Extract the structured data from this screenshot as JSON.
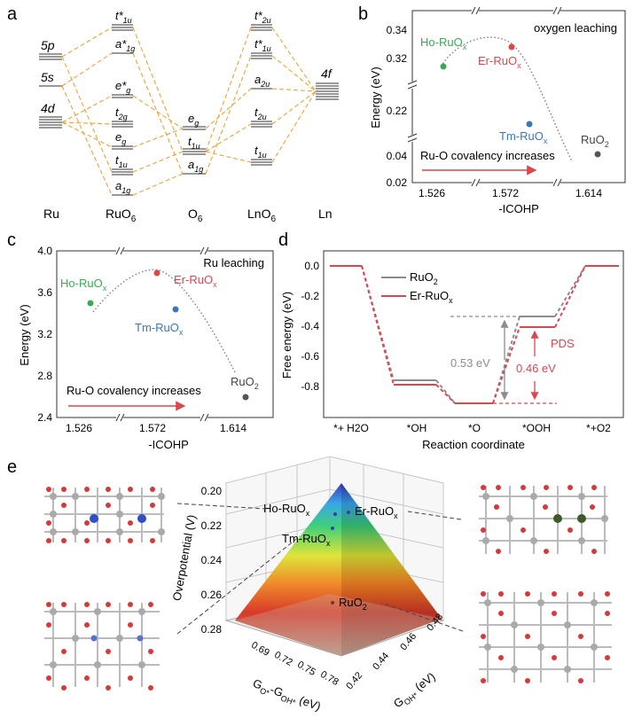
{
  "panel_letters": {
    "a": "a",
    "b": "b",
    "c": "c",
    "d": "d",
    "e": "e"
  },
  "colors": {
    "orange": "#e8a33a",
    "ho": "#3aa856",
    "er": "#d9474f",
    "tm": "#3a78b4",
    "ruo2": "#555555",
    "gray_line": "#8c8c8c",
    "red_line": "#d9474f"
  },
  "mo": {
    "ru_orbitals": {
      "p5": "5p",
      "s5": "5s",
      "d4": "4d"
    },
    "ru_label": "Ru",
    "ruo6_label": "RuO",
    "ruo6_sub": "6",
    "o6_label": "O",
    "o6_sub": "6",
    "lno6_label": "LnO",
    "lno6_sub": "6",
    "ln_label": "Ln",
    "ln_f": "4f",
    "ruo6_levels": [
      {
        "m": "t*",
        "s": "1u"
      },
      {
        "m": "a*",
        "s": "1g"
      },
      {
        "m": "e*",
        "s": "g"
      },
      {
        "m": "t",
        "s": "2g"
      },
      {
        "m": "e",
        "s": "g"
      },
      {
        "m": "t",
        "s": "1u"
      },
      {
        "m": "a",
        "s": "1g"
      }
    ],
    "o6_levels": [
      {
        "m": "e",
        "s": "g"
      },
      {
        "m": "t",
        "s": "1u"
      },
      {
        "m": "a",
        "s": "1g"
      }
    ],
    "lno6_levels": [
      {
        "m": "t*",
        "s": "2u"
      },
      {
        "m": "t*",
        "s": "1u"
      },
      {
        "m": "a",
        "s": "2u"
      },
      {
        "m": "t",
        "s": "2u"
      },
      {
        "m": "t",
        "s": "1u"
      }
    ]
  },
  "chart_data": [
    {
      "id": "b",
      "type": "scatter",
      "title": "oxygen leaching",
      "xlabel": "-ICOHP",
      "ylabel": "Energy (eV)",
      "xticks": [
        "1.526",
        "1.572",
        "1.614"
      ],
      "yticks_top": [
        "0.34",
        "0.32"
      ],
      "yticks_mid": [
        "0.22"
      ],
      "yticks_bot": [
        "0.04",
        "0.02"
      ],
      "arrow_text": "Ru-O covalency increases",
      "points": [
        {
          "name": "Ho-RuO",
          "sub": "x",
          "x": 1.53,
          "y": 0.315
        },
        {
          "name": "Er-RuO",
          "sub": "x",
          "x": 1.575,
          "y": 0.327
        },
        {
          "name": "Tm-RuO",
          "sub": "x",
          "x": 1.582,
          "y": 0.215
        },
        {
          "name": "RuO",
          "sub": "2",
          "x": 1.612,
          "y": 0.041
        }
      ]
    },
    {
      "id": "c",
      "type": "scatter",
      "title": "Ru leaching",
      "xlabel": "-ICOHP",
      "ylabel": "Energy (eV)",
      "xticks": [
        "1.526",
        "1.572",
        "1.614"
      ],
      "yticks": [
        "4.0",
        "3.6",
        "3.2",
        "2.8",
        "2.4"
      ],
      "ylim": [
        2.4,
        4.0
      ],
      "arrow_text": "Ru-O covalency increases",
      "points": [
        {
          "name": "Ho-RuO",
          "sub": "x",
          "x": 1.53,
          "y": 3.5
        },
        {
          "name": "Er-RuO",
          "sub": "x",
          "x": 1.575,
          "y": 3.78
        },
        {
          "name": "Tm-RuO",
          "sub": "x",
          "x": 1.582,
          "y": 3.43
        },
        {
          "name": "RuO",
          "sub": "2",
          "x": 1.612,
          "y": 2.58
        }
      ]
    },
    {
      "id": "d",
      "type": "line",
      "xlabel": "Reaction coordinate",
      "ylabel": "Free energy (eV)",
      "categories": [
        "*+ H2O",
        "*OH",
        "*O",
        "*OOH",
        "*+O2"
      ],
      "yticks": [
        "0.0",
        "-0.2",
        "-0.4",
        "-0.6",
        "-0.8"
      ],
      "ylim": [
        -0.9,
        0.1
      ],
      "series": [
        {
          "name": "RuO2",
          "values": [
            0.0,
            -0.76,
            -0.83,
            -0.3,
            0.0
          ]
        },
        {
          "name": "Er-RuOx",
          "values": [
            0.0,
            -0.79,
            -0.83,
            -0.37,
            0.0
          ]
        }
      ],
      "annotations": {
        "gap_ruo2": "0.53 eV",
        "gap_er": "0.46 eV",
        "pds": "PDS"
      }
    },
    {
      "id": "e",
      "type": "surface3d",
      "zlabel": "Overpotential (V)",
      "xlabel": "G",
      "xlabel_rest": "(eV)",
      "ylabel": "G",
      "ylabel_rest": "(eV)",
      "zticks": [
        "0.20",
        "0.22",
        "0.24",
        "0.26",
        "0.28"
      ],
      "xticks": [
        "0.69",
        "0.72",
        "0.75",
        "0.78"
      ],
      "yticks": [
        "0.42",
        "0.44",
        "0.46",
        "0.48"
      ],
      "points": [
        {
          "name": "Ho-RuO",
          "sub": "x"
        },
        {
          "name": "Er-RuO",
          "sub": "x"
        },
        {
          "name": "Tm-RuO",
          "sub": "x"
        },
        {
          "name": "RuO",
          "sub": "2"
        }
      ]
    }
  ]
}
